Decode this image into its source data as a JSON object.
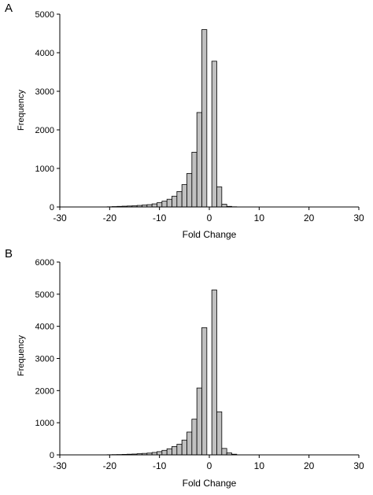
{
  "chart_data": [
    {
      "type": "bar",
      "panel_label": "A",
      "xlabel": "Fold Change",
      "ylabel": "Frequency",
      "xlim": [
        -30,
        30
      ],
      "ylim": [
        0,
        5000
      ],
      "xticks": [
        -30,
        -20,
        -10,
        0,
        10,
        20,
        30
      ],
      "yticks": [
        0,
        1000,
        2000,
        3000,
        4000,
        5000
      ],
      "bin_width": 1,
      "bar_color": "#c0c0c0",
      "edge_color": "#000000",
      "grid": false,
      "bins": [
        {
          "x": -20,
          "y": 5
        },
        {
          "x": -19,
          "y": 10
        },
        {
          "x": -18,
          "y": 15
        },
        {
          "x": -17,
          "y": 20
        },
        {
          "x": -16,
          "y": 25
        },
        {
          "x": -15,
          "y": 30
        },
        {
          "x": -14,
          "y": 40
        },
        {
          "x": -13,
          "y": 50
        },
        {
          "x": -12,
          "y": 60
        },
        {
          "x": -11,
          "y": 80
        },
        {
          "x": -10,
          "y": 110
        },
        {
          "x": -9,
          "y": 150
        },
        {
          "x": -8,
          "y": 200
        },
        {
          "x": -7,
          "y": 280
        },
        {
          "x": -6,
          "y": 400
        },
        {
          "x": -5,
          "y": 580
        },
        {
          "x": -4,
          "y": 870
        },
        {
          "x": -3,
          "y": 1420
        },
        {
          "x": -2,
          "y": 2450
        },
        {
          "x": -1,
          "y": 4600
        },
        {
          "x": 1,
          "y": 3780
        },
        {
          "x": 2,
          "y": 520
        },
        {
          "x": 3,
          "y": 70
        },
        {
          "x": 4,
          "y": 15
        },
        {
          "x": 5,
          "y": 5
        }
      ]
    },
    {
      "type": "bar",
      "panel_label": "B",
      "xlabel": "Fold Change",
      "ylabel": "Frequency",
      "xlim": [
        -30,
        30
      ],
      "ylim": [
        0,
        6000
      ],
      "xticks": [
        -30,
        -20,
        -10,
        0,
        10,
        20,
        30
      ],
      "yticks": [
        0,
        1000,
        2000,
        3000,
        4000,
        5000,
        6000
      ],
      "bin_width": 1,
      "bar_color": "#c0c0c0",
      "edge_color": "#000000",
      "grid": false,
      "bins": [
        {
          "x": -20,
          "y": 5
        },
        {
          "x": -19,
          "y": 8
        },
        {
          "x": -18,
          "y": 10
        },
        {
          "x": -17,
          "y": 15
        },
        {
          "x": -16,
          "y": 20
        },
        {
          "x": -15,
          "y": 25
        },
        {
          "x": -14,
          "y": 35
        },
        {
          "x": -13,
          "y": 45
        },
        {
          "x": -12,
          "y": 55
        },
        {
          "x": -11,
          "y": 75
        },
        {
          "x": -10,
          "y": 100
        },
        {
          "x": -9,
          "y": 140
        },
        {
          "x": -8,
          "y": 190
        },
        {
          "x": -7,
          "y": 260
        },
        {
          "x": -6,
          "y": 330
        },
        {
          "x": -5,
          "y": 460
        },
        {
          "x": -4,
          "y": 710
        },
        {
          "x": -3,
          "y": 1110
        },
        {
          "x": -2,
          "y": 2080
        },
        {
          "x": -1,
          "y": 3960
        },
        {
          "x": 1,
          "y": 5130
        },
        {
          "x": 2,
          "y": 1340
        },
        {
          "x": 3,
          "y": 200
        },
        {
          "x": 4,
          "y": 60
        },
        {
          "x": 5,
          "y": 20
        }
      ]
    }
  ]
}
